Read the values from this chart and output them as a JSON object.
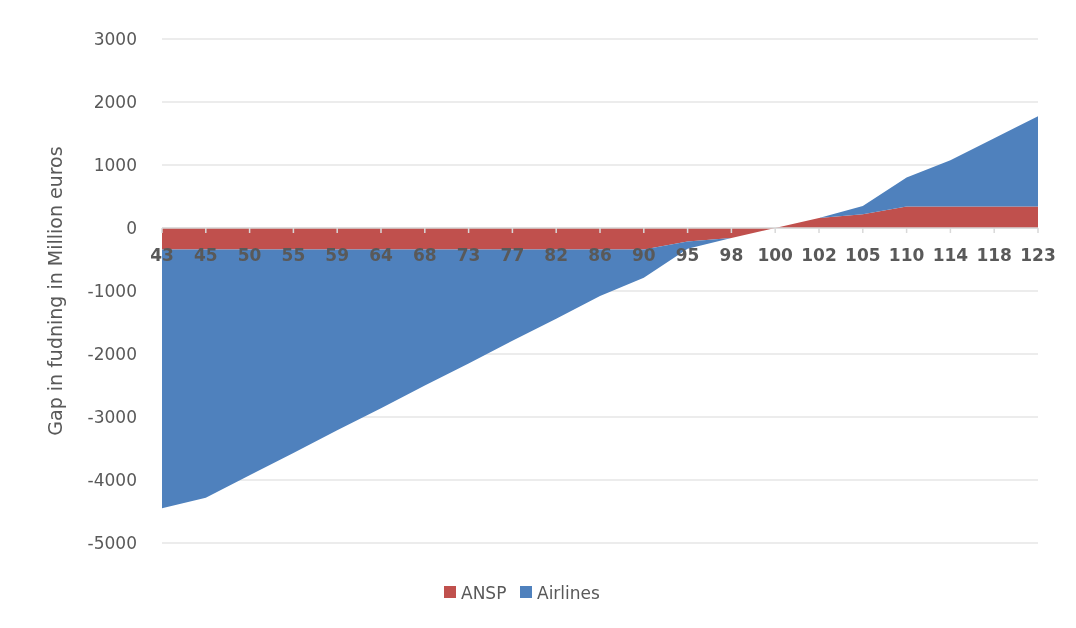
{
  "chart_data": {
    "type": "area",
    "stacked": true,
    "ylabel": "Gap in fudning in Million euros",
    "categories": [
      "43",
      "45",
      "50",
      "55",
      "59",
      "64",
      "68",
      "73",
      "77",
      "82",
      "86",
      "90",
      "95",
      "98",
      "100",
      "102",
      "105",
      "110",
      "114",
      "118",
      "123"
    ],
    "series": [
      {
        "name": "ANSP",
        "color": "#c0504d",
        "values": [
          -340,
          -340,
          -340,
          -340,
          -340,
          -340,
          -340,
          -340,
          -340,
          -340,
          -340,
          -340,
          -215,
          -160,
          0,
          160,
          220,
          340,
          340,
          340,
          340
        ]
      },
      {
        "name": "Airlines",
        "color": "#4f81bd",
        "values": [
          -4110,
          -3940,
          -3585,
          -3230,
          -2870,
          -2520,
          -2160,
          -1810,
          -1450,
          -1100,
          -740,
          -450,
          -115,
          0,
          0,
          0,
          130,
          460,
          735,
          1085,
          1435
        ]
      }
    ],
    "ylim": [
      -5000,
      3000
    ],
    "yticks": [
      -5000,
      -4000,
      -3000,
      -2000,
      -1000,
      0,
      1000,
      2000,
      3000
    ],
    "grid": "y",
    "legend": "bottom"
  }
}
